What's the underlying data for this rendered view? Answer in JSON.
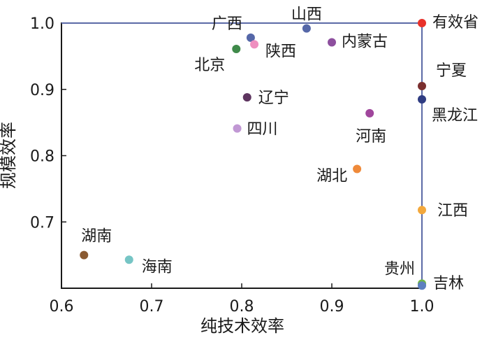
{
  "chart_data": {
    "type": "scatter",
    "xlabel": "纯技术效率",
    "ylabel": "规模效率",
    "xlim": [
      0.6,
      1.0
    ],
    "ylim": [
      0.6,
      1.0
    ],
    "x_ticks": [
      "0.6",
      "0.7",
      "0.8",
      "0.9",
      "1.0"
    ],
    "y_ticks": [
      "0.7",
      "0.8",
      "0.9",
      "1.0"
    ],
    "frontier_color": "#5b6aa6",
    "points": [
      {
        "label": "有效省",
        "x": 1.0,
        "y": 1.0,
        "color": "#e8312a"
      },
      {
        "label": "广西",
        "x": 0.81,
        "y": 0.978,
        "color": "#5567a8"
      },
      {
        "label": "山西",
        "x": 0.872,
        "y": 0.992,
        "color": "#5567a8"
      },
      {
        "label": "北京",
        "x": 0.794,
        "y": 0.961,
        "color": "#3f8a4a"
      },
      {
        "label": "陕西",
        "x": 0.814,
        "y": 0.968,
        "color": "#ee8fbf"
      },
      {
        "label": "内蒙古",
        "x": 0.9,
        "y": 0.971,
        "color": "#8d4f9e"
      },
      {
        "label": "宁夏",
        "x": 1.0,
        "y": 0.905,
        "color": "#7a2f2f"
      },
      {
        "label": "黑龙江",
        "x": 1.0,
        "y": 0.885,
        "color": "#2f3c82"
      },
      {
        "label": "辽宁",
        "x": 0.806,
        "y": 0.888,
        "color": "#5e3560"
      },
      {
        "label": "四川",
        "x": 0.795,
        "y": 0.841,
        "color": "#c198d4"
      },
      {
        "label": "河南",
        "x": 0.942,
        "y": 0.864,
        "color": "#a0469c"
      },
      {
        "label": "湖北",
        "x": 0.928,
        "y": 0.78,
        "color": "#ef8a3a"
      },
      {
        "label": "江西",
        "x": 1.0,
        "y": 0.718,
        "color": "#f3a83c"
      },
      {
        "label": "湖南",
        "x": 0.625,
        "y": 0.65,
        "color": "#8a5a32"
      },
      {
        "label": "海南",
        "x": 0.675,
        "y": 0.643,
        "color": "#76c5c5"
      },
      {
        "label": "贵州",
        "x": 1.0,
        "y": 0.607,
        "color": "#6fb748"
      },
      {
        "label": "吉林",
        "x": 1.0,
        "y": 0.604,
        "color": "#5d7fc0"
      }
    ]
  }
}
